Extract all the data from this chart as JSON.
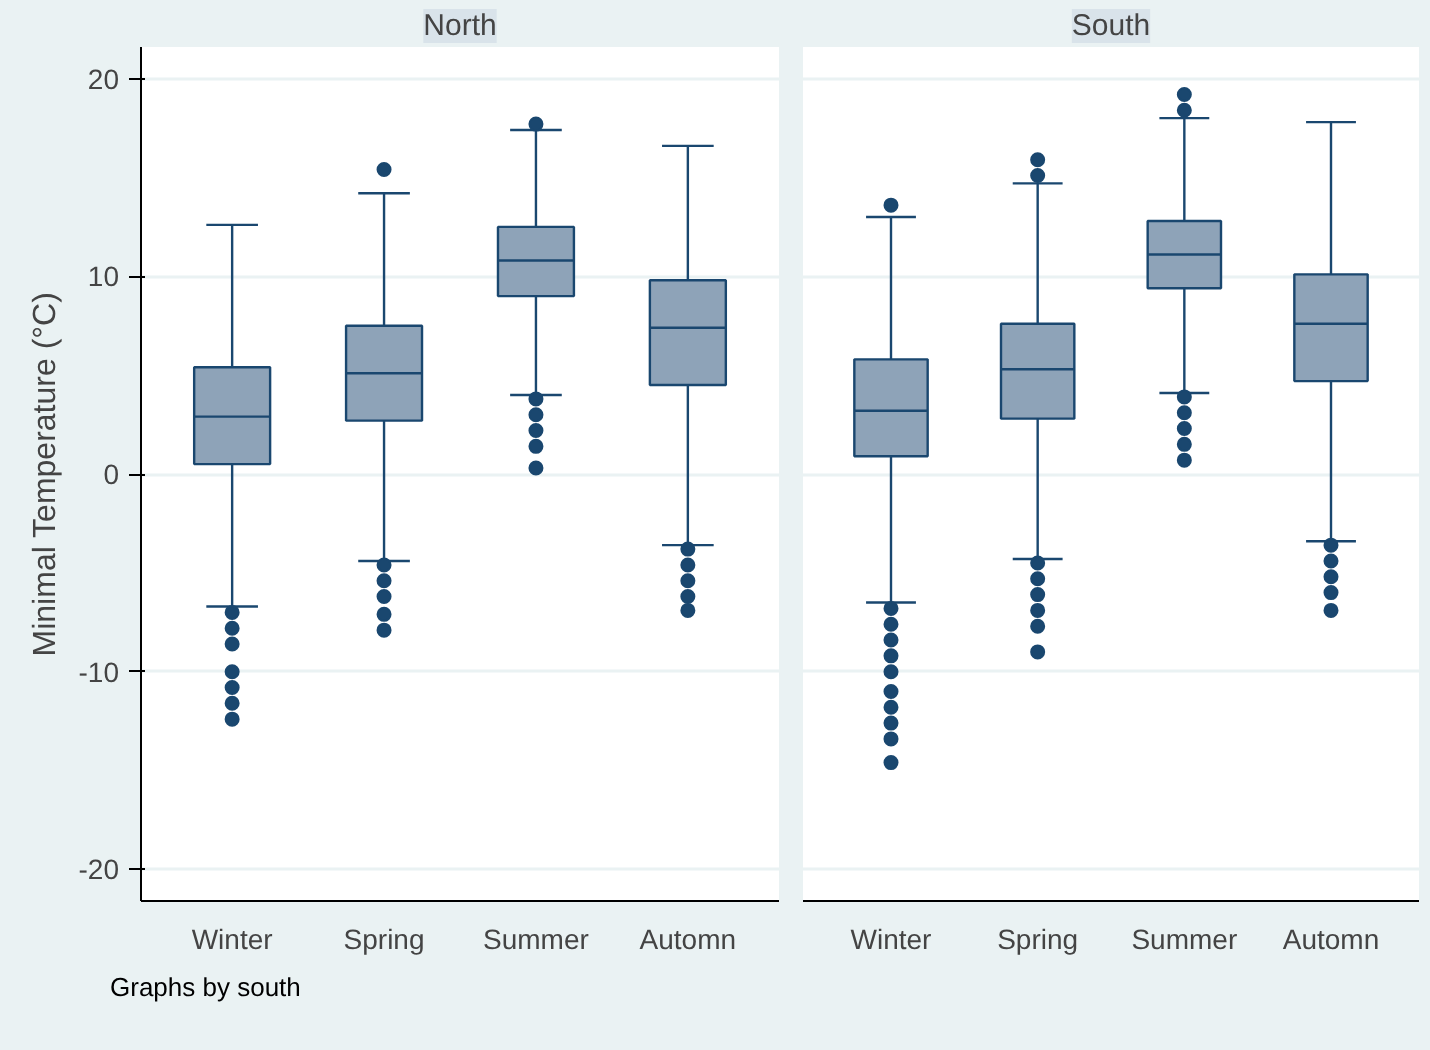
{
  "chart_data": [
    {
      "type": "box",
      "title": "North",
      "ylabel": "Minimal Temperature (°C)",
      "categories": [
        "Winter",
        "Spring",
        "Summer",
        "Automn"
      ],
      "ylim": [
        -21.6,
        21.6
      ],
      "yticks": [
        -20,
        -10,
        0,
        10,
        20
      ],
      "grid": "y",
      "color": "#8ea3b8",
      "boxes": [
        {
          "low": -6.7,
          "q1": 0.5,
          "median": 2.9,
          "q3": 5.4,
          "high": 12.6,
          "outliers": [
            -7.0,
            -7.8,
            -8.6,
            -10.0,
            -10.8,
            -11.6,
            -12.4
          ]
        },
        {
          "low": -4.4,
          "q1": 2.7,
          "median": 5.1,
          "q3": 7.5,
          "high": 14.2,
          "outliers": [
            15.4,
            -4.6,
            -5.4,
            -6.2,
            -7.1,
            -7.9
          ]
        },
        {
          "low": 4.0,
          "q1": 9.0,
          "median": 10.8,
          "q3": 12.5,
          "high": 17.4,
          "outliers": [
            17.7,
            3.8,
            3.0,
            2.2,
            1.4,
            0.3
          ]
        },
        {
          "low": -3.6,
          "q1": 4.5,
          "median": 7.4,
          "q3": 9.8,
          "high": 16.6,
          "outliers": [
            -3.8,
            -4.6,
            -5.4,
            -6.2,
            -6.9
          ]
        }
      ],
      "annotations": [
        "Graphs by south"
      ]
    },
    {
      "type": "box",
      "title": "South",
      "categories": [
        "Winter",
        "Spring",
        "Summer",
        "Automn"
      ],
      "ylim": [
        -21.6,
        21.6
      ],
      "yticks": [
        -20,
        -10,
        0,
        10,
        20
      ],
      "tick_labels": "x",
      "grid": "y",
      "color": "#8ea3b8",
      "boxes": [
        {
          "low": -6.5,
          "q1": 0.9,
          "median": 3.2,
          "q3": 5.8,
          "high": 13.0,
          "outliers": [
            13.6,
            -6.8,
            -7.6,
            -8.4,
            -9.2,
            -10.0,
            -11.0,
            -11.8,
            -12.6,
            -13.4,
            -14.6
          ]
        },
        {
          "low": -4.3,
          "q1": 2.8,
          "median": 5.3,
          "q3": 7.6,
          "high": 14.7,
          "outliers": [
            15.1,
            15.9,
            -4.5,
            -5.3,
            -6.1,
            -6.9,
            -7.7,
            -9.0
          ]
        },
        {
          "low": 4.1,
          "q1": 9.4,
          "median": 11.1,
          "q3": 12.8,
          "high": 18.0,
          "outliers": [
            18.4,
            19.2,
            3.9,
            3.1,
            2.3,
            1.5,
            0.7
          ]
        },
        {
          "low": -3.4,
          "q1": 4.7,
          "median": 7.6,
          "q3": 10.1,
          "high": 17.8,
          "outliers": [
            -3.6,
            -4.4,
            -5.2,
            -6.0,
            -6.9
          ]
        }
      ]
    }
  ]
}
